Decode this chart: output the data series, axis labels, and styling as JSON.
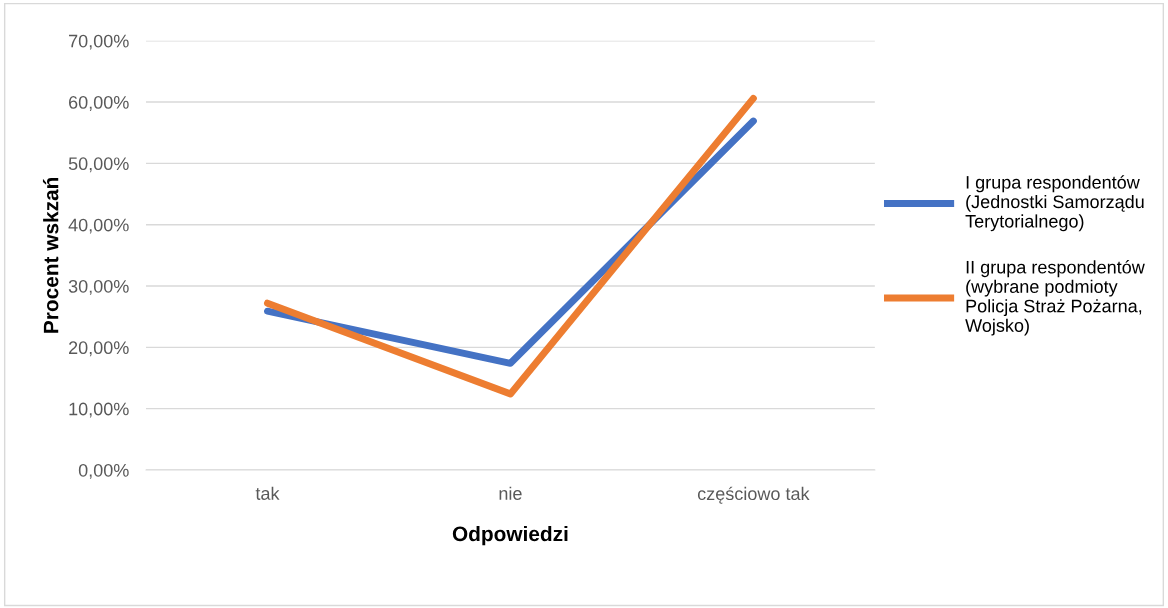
{
  "chart_data": {
    "type": "line",
    "xlabel": "Odpowiedzi",
    "ylabel": "Procent wskzań",
    "categories": [
      "tak",
      "nie",
      "częściowo tak"
    ],
    "series": [
      {
        "name": "I grupa respondentów\n(Jednostki Samorządu\nTerytorialnego)",
        "color": "#4472c4",
        "values": [
          25.9,
          17.4,
          56.9
        ]
      },
      {
        "name": "II grupa respondentów\n(wybrane podmioty\nPolicja Straż Pożarna,\nWojsko)",
        "color": "#ed7d31",
        "values": [
          27.2,
          12.4,
          60.6
        ]
      }
    ],
    "ylim": [
      0,
      70
    ],
    "yticks": [
      {
        "value": 0,
        "label": "0,00%"
      },
      {
        "value": 10,
        "label": "10,00%"
      },
      {
        "value": 20,
        "label": "20,00%"
      },
      {
        "value": 30,
        "label": "30,00%"
      },
      {
        "value": 40,
        "label": "40,00%"
      },
      {
        "value": 50,
        "label": "50,00%"
      },
      {
        "value": 60,
        "label": "60,00%"
      },
      {
        "value": 70,
        "label": "70,00%"
      }
    ],
    "grid": "y",
    "legend": "right",
    "marker": "none",
    "line_style": "solid"
  }
}
